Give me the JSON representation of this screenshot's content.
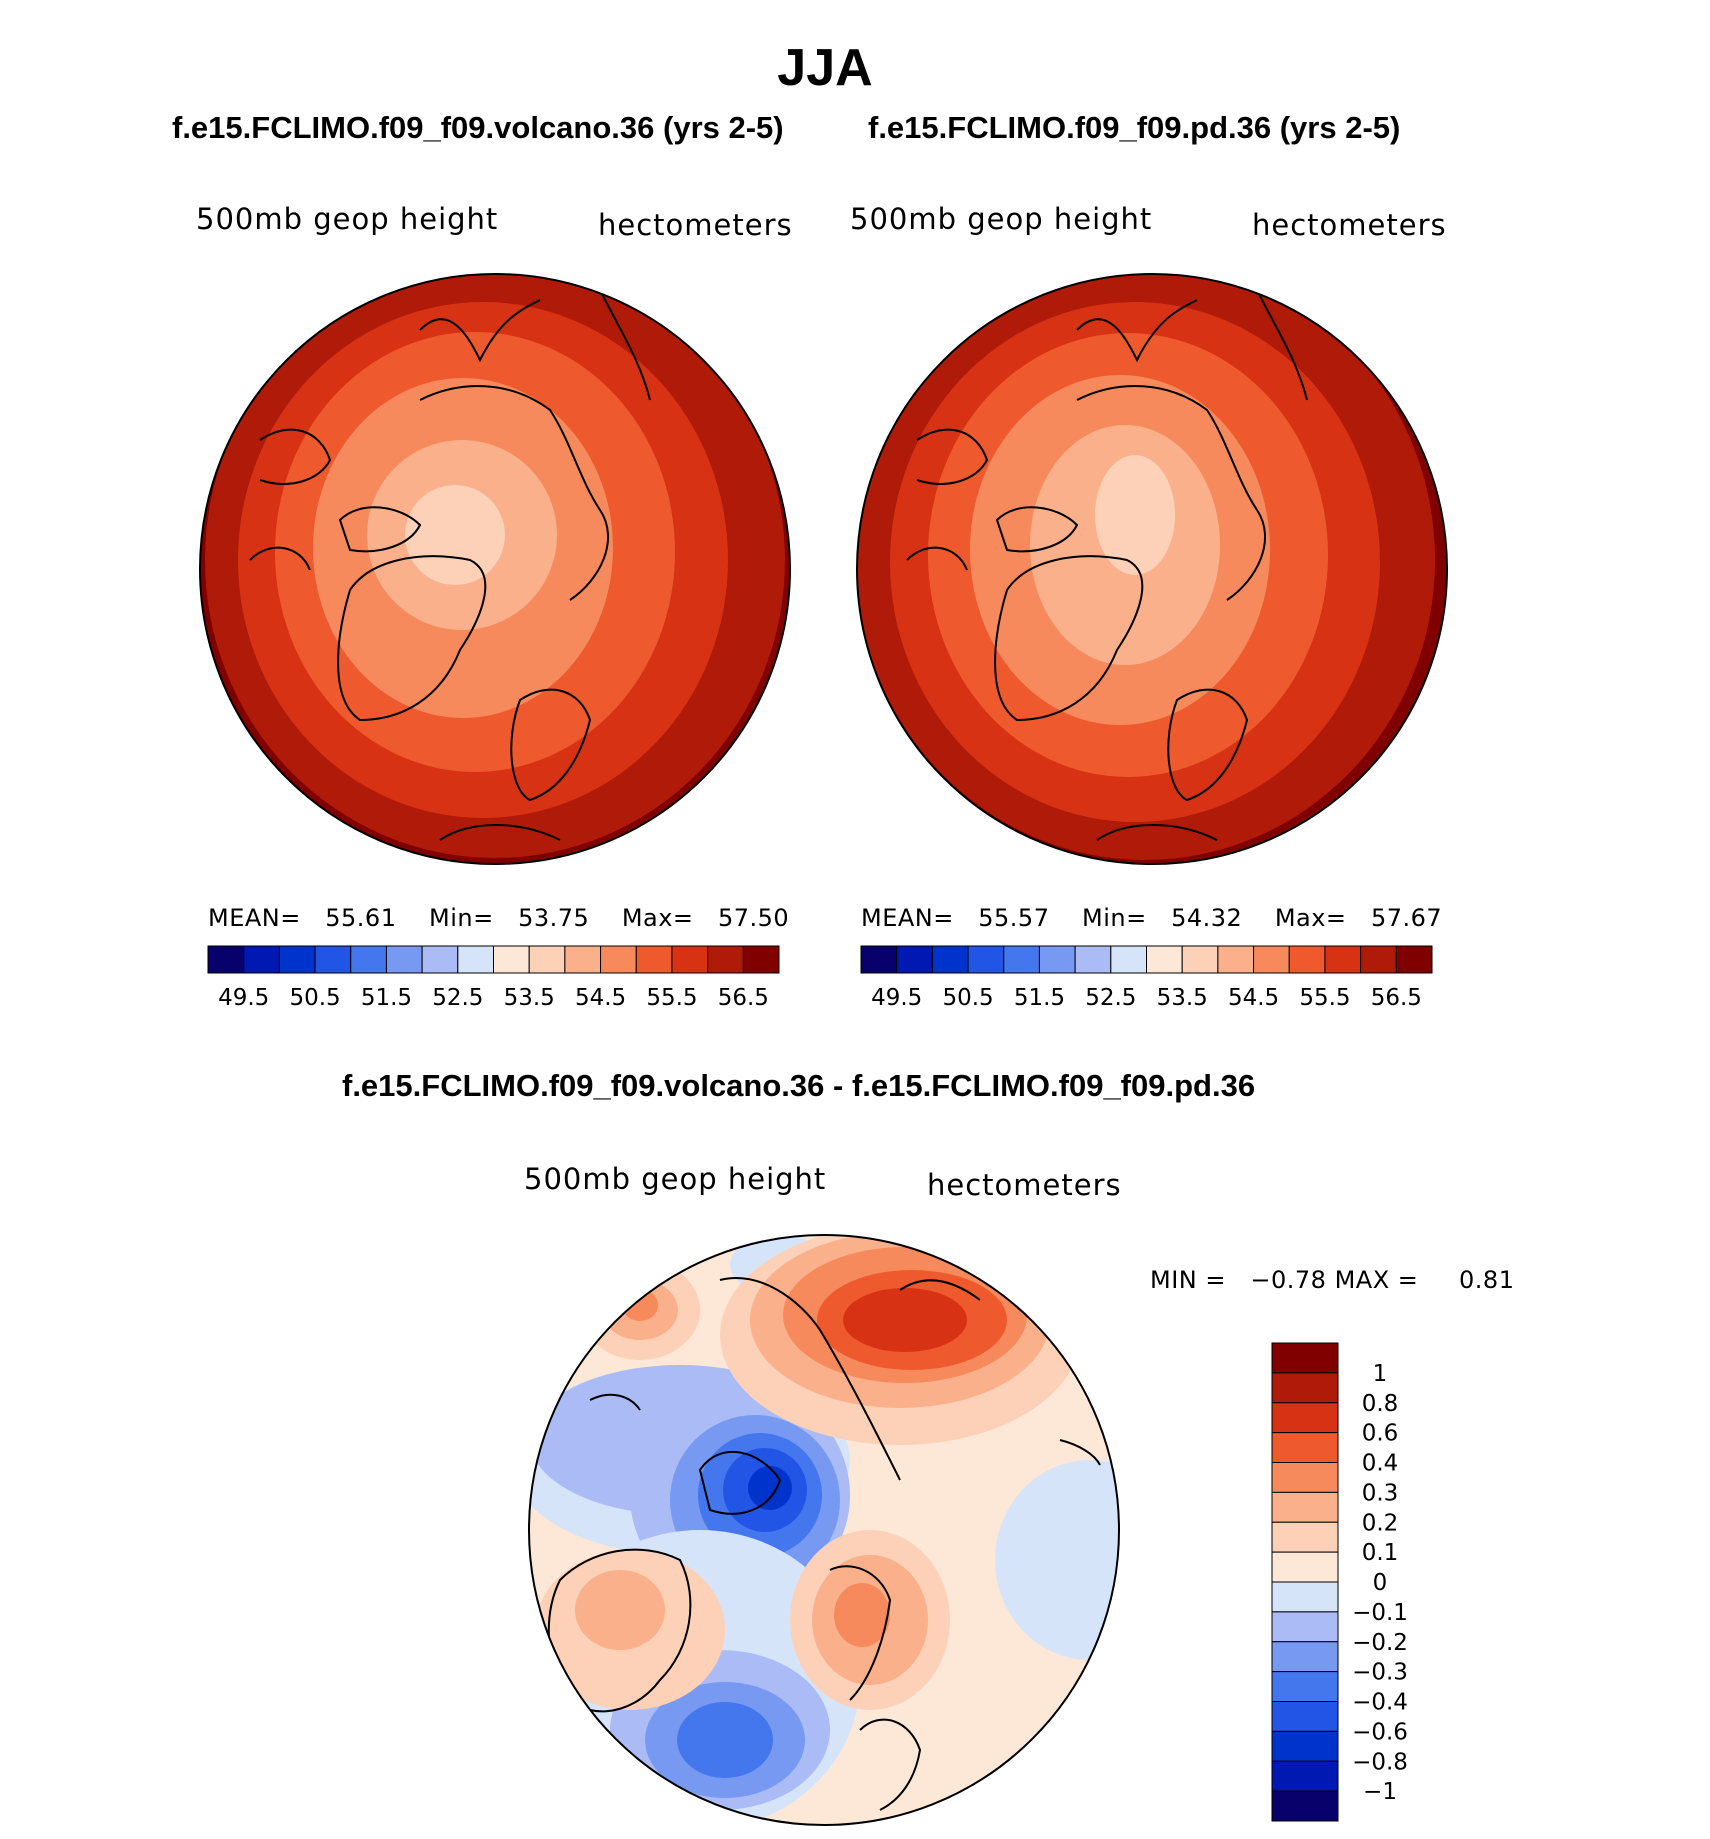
{
  "title": "JJA",
  "panels": [
    {
      "id": "volcano",
      "title": "f.e15.FCLIMO.f09_f09.volcano.36 (yrs 2-5)",
      "variable": "500mb geop height",
      "units": "hectometers",
      "stats": {
        "mean_label": "MEAN=",
        "mean": "55.61",
        "min_label": "Min=",
        "min": "53.75",
        "max_label": "Max=",
        "max": "57.50"
      }
    },
    {
      "id": "pd",
      "title": "f.e15.FCLIMO.f09_f09.pd.36 (yrs 2-5)",
      "variable": "500mb geop height",
      "units": "hectometers",
      "stats": {
        "mean_label": "MEAN=",
        "mean": "55.57",
        "min_label": "Min=",
        "min": "54.32",
        "max_label": "Max=",
        "max": "57.67"
      }
    }
  ],
  "colorbar_horizontal": {
    "colors": [
      "#08006b",
      "#0019b3",
      "#0033cc",
      "#2255e6",
      "#4477ee",
      "#7799f2",
      "#aabbf5",
      "#d6e4fa",
      "#fde8d8",
      "#fdd0b8",
      "#fab08a",
      "#f78a5c",
      "#ee5a2e",
      "#d83214",
      "#b01a08",
      "#800000"
    ],
    "tick_labels": [
      "49.5",
      "50.5",
      "51.5",
      "52.5",
      "53.5",
      "54.5",
      "55.5",
      "56.5"
    ]
  },
  "difference": {
    "title": "f.e15.FCLIMO.f09_f09.volcano.36 - f.e15.FCLIMO.f09_f09.pd.36",
    "variable": "500mb geop height",
    "units": "hectometers",
    "min_label": "MIN =",
    "min": "−0.78",
    "max_label": "MAX =",
    "max": "0.81",
    "colorbar": {
      "colors_top_to_bottom": [
        "#800000",
        "#b01a08",
        "#d83214",
        "#ee5a2e",
        "#f78a5c",
        "#fab08a",
        "#fdd0b8",
        "#fde8d8",
        "#d6e4fa",
        "#aabbf5",
        "#7799f2",
        "#4477ee",
        "#2255e6",
        "#0033cc",
        "#0019b3",
        "#08006b"
      ],
      "tick_labels": [
        "1",
        "0.8",
        "0.6",
        "0.4",
        "0.3",
        "0.2",
        "0.1",
        "0",
        "−0.1",
        "−0.2",
        "−0.3",
        "−0.4",
        "−0.6",
        "−0.8",
        "−1"
      ]
    }
  }
}
